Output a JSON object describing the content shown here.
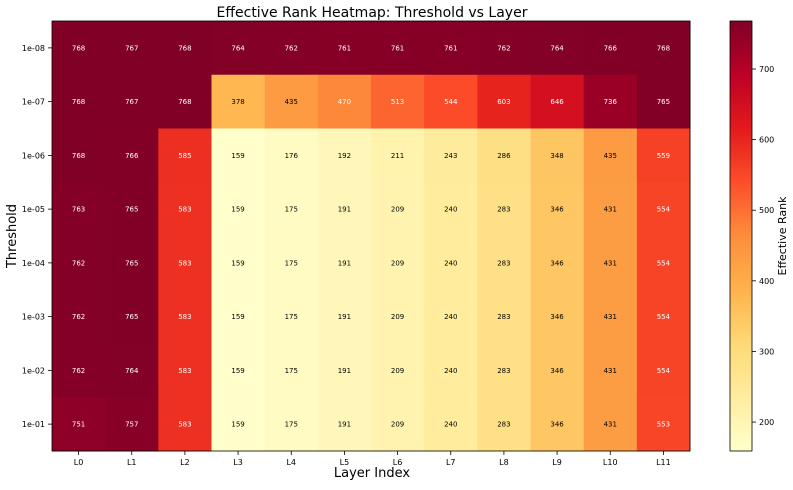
{
  "chart_data": {
    "type": "heatmap",
    "title": "Effective Rank Heatmap: Threshold vs Layer",
    "xlabel": "Layer Index",
    "ylabel": "Threshold",
    "colorbar_label": "Effective Rank",
    "colormap": "YlOrRd",
    "color_range": [
      159,
      768
    ],
    "colorbar_ticks": [
      200,
      300,
      400,
      500,
      600,
      700
    ],
    "x_categories": [
      "L0",
      "L1",
      "L2",
      "L3",
      "L4",
      "L5",
      "L6",
      "L7",
      "L8",
      "L9",
      "L10",
      "L11"
    ],
    "y_categories": [
      "1e-08",
      "1e-07",
      "1e-06",
      "1e-05",
      "1e-04",
      "1e-03",
      "1e-02",
      "1e-01"
    ],
    "values": [
      [
        768,
        767,
        768,
        764,
        762,
        761,
        761,
        761,
        762,
        764,
        766,
        768
      ],
      [
        768,
        767,
        768,
        378,
        435,
        470,
        513,
        544,
        603,
        646,
        736,
        765
      ],
      [
        768,
        766,
        585,
        159,
        176,
        192,
        211,
        243,
        286,
        348,
        435,
        559
      ],
      [
        763,
        765,
        583,
        159,
        175,
        191,
        209,
        240,
        283,
        346,
        431,
        554
      ],
      [
        762,
        765,
        583,
        159,
        175,
        191,
        209,
        240,
        283,
        346,
        431,
        554
      ],
      [
        762,
        765,
        583,
        159,
        175,
        191,
        209,
        240,
        283,
        346,
        431,
        554
      ],
      [
        762,
        764,
        583,
        159,
        175,
        191,
        209,
        240,
        283,
        346,
        431,
        554
      ],
      [
        751,
        757,
        583,
        159,
        175,
        191,
        209,
        240,
        283,
        346,
        431,
        553
      ]
    ],
    "grid": false,
    "legend": "colorbar-right"
  }
}
